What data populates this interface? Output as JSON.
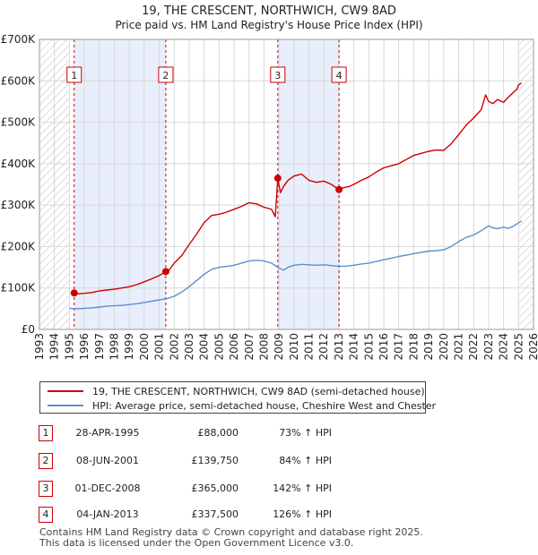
{
  "chart_data": {
    "type": "line",
    "title": "19, THE CRESCENT, NORTHWICH, CW9 8AD",
    "subtitle": "Price paid vs. HM Land Registry's House Price Index (HPI)",
    "xlabel": "",
    "ylabel": "",
    "xlim": [
      1993,
      2026
    ],
    "ylim": [
      0,
      700000
    ],
    "x_ticks": [
      "1993",
      "1994",
      "1995",
      "1996",
      "1997",
      "1998",
      "1999",
      "2000",
      "2001",
      "2002",
      "2003",
      "2004",
      "2005",
      "2006",
      "2007",
      "2008",
      "2009",
      "2010",
      "2011",
      "2012",
      "2013",
      "2014",
      "2015",
      "2016",
      "2017",
      "2018",
      "2019",
      "2020",
      "2021",
      "2022",
      "2023",
      "2024",
      "2025",
      "2026"
    ],
    "y_ticks": [
      {
        "value": 0,
        "label": "£0"
      },
      {
        "value": 100000,
        "label": "£100K"
      },
      {
        "value": 200000,
        "label": "£200K"
      },
      {
        "value": 300000,
        "label": "£300K"
      },
      {
        "value": 400000,
        "label": "£400K"
      },
      {
        "value": 500000,
        "label": "£500K"
      },
      {
        "value": 600000,
        "label": "£600K"
      },
      {
        "value": 700000,
        "label": "£700K"
      }
    ],
    "grid": true,
    "hatched_ranges": [
      [
        1993,
        1995.0
      ],
      [
        2025.0,
        2026
      ]
    ],
    "shaded_ranges": [
      [
        1995.32,
        2001.44
      ],
      [
        2008.92,
        2013.01
      ]
    ],
    "series": [
      {
        "name": "19, THE CRESCENT, NORTHWICH, CW9 8AD (semi-detached house)",
        "color": "#cc0000",
        "x": [
          1995.32,
          1995.6,
          1996.0,
          1996.5,
          1997.0,
          1997.5,
          1998.0,
          1998.5,
          1999.0,
          1999.5,
          2000.0,
          2000.5,
          2001.0,
          2001.44,
          2001.7,
          2002.0,
          2002.5,
          2003.0,
          2003.5,
          2004.0,
          2004.5,
          2005.0,
          2005.5,
          2006.0,
          2006.5,
          2007.0,
          2007.5,
          2008.0,
          2008.5,
          2008.75,
          2008.92,
          2009.1,
          2009.3,
          2009.6,
          2010.0,
          2010.5,
          2011.0,
          2011.5,
          2012.0,
          2012.5,
          2013.01,
          2013.3,
          2013.7,
          2014.0,
          2014.5,
          2015.0,
          2015.5,
          2016.0,
          2016.5,
          2017.0,
          2017.5,
          2018.0,
          2018.5,
          2019.0,
          2019.5,
          2020.0,
          2020.5,
          2021.0,
          2021.5,
          2022.0,
          2022.5,
          2022.8,
          2023.0,
          2023.3,
          2023.6,
          2024.0,
          2024.3,
          2024.6,
          2024.9,
          2025.0,
          2025.2
        ],
        "values": [
          88000,
          86000,
          87000,
          89000,
          93000,
          95000,
          97000,
          100000,
          103000,
          108000,
          115000,
          122000,
          130000,
          139750,
          145000,
          160000,
          178000,
          205000,
          230000,
          258000,
          275000,
          278000,
          283000,
          290000,
          297000,
          306000,
          303000,
          295000,
          290000,
          272000,
          365000,
          330000,
          345000,
          360000,
          370000,
          375000,
          360000,
          355000,
          358000,
          350000,
          337500,
          342000,
          345000,
          350000,
          360000,
          368000,
          380000,
          390000,
          395000,
          400000,
          410000,
          420000,
          425000,
          430000,
          433000,
          432000,
          448000,
          470000,
          493000,
          510000,
          530000,
          566000,
          550000,
          545000,
          555000,
          548000,
          560000,
          570000,
          580000,
          590000,
          595000
        ]
      },
      {
        "name": "HPI: Average price, semi-detached house, Cheshire West and Chester",
        "color": "#5b8fcc",
        "x": [
          1995.0,
          1995.5,
          1996.0,
          1996.5,
          1997.0,
          1997.5,
          1998.0,
          1998.5,
          1999.0,
          1999.5,
          2000.0,
          2000.5,
          2001.0,
          2001.5,
          2002.0,
          2002.5,
          2003.0,
          2003.5,
          2004.0,
          2004.5,
          2005.0,
          2005.5,
          2006.0,
          2006.5,
          2007.0,
          2007.5,
          2008.0,
          2008.5,
          2009.0,
          2009.3,
          2009.6,
          2010.0,
          2010.5,
          2011.0,
          2011.5,
          2012.0,
          2012.5,
          2013.0,
          2013.5,
          2014.0,
          2014.5,
          2015.0,
          2015.5,
          2016.0,
          2016.5,
          2017.0,
          2017.5,
          2018.0,
          2018.5,
          2019.0,
          2019.5,
          2020.0,
          2020.5,
          2021.0,
          2021.5,
          2022.0,
          2022.5,
          2023.0,
          2023.3,
          2023.6,
          2024.0,
          2024.3,
          2024.6,
          2024.9,
          2025.2
        ],
        "values": [
          51000,
          50000,
          51000,
          52000,
          54000,
          56000,
          57000,
          58000,
          60000,
          62000,
          65000,
          68000,
          71000,
          74000,
          80000,
          90000,
          103000,
          118000,
          133000,
          145000,
          150000,
          152000,
          155000,
          160000,
          165000,
          167000,
          165000,
          160000,
          148000,
          143000,
          150000,
          155000,
          157000,
          156000,
          155000,
          156000,
          154000,
          152000,
          153000,
          155000,
          158000,
          160000,
          164000,
          168000,
          172000,
          176000,
          179000,
          183000,
          186000,
          189000,
          190000,
          192000,
          200000,
          212000,
          222000,
          228000,
          238000,
          250000,
          245000,
          243000,
          247000,
          244000,
          248000,
          255000,
          262000
        ]
      }
    ],
    "sales": [
      {
        "num": "1",
        "x": 1995.32,
        "date": "28-APR-1995",
        "price": "£88,000",
        "price_value": 88000,
        "hpi": "73% ↑ HPI"
      },
      {
        "num": "2",
        "x": 2001.44,
        "date": "08-JUN-2001",
        "price": "£139,750",
        "price_value": 139750,
        "hpi": "84% ↑ HPI"
      },
      {
        "num": "3",
        "x": 2008.92,
        "date": "01-DEC-2008",
        "price": "£365,000",
        "price_value": 365000,
        "hpi": "142% ↑ HPI"
      },
      {
        "num": "4",
        "x": 2013.01,
        "date": "04-JAN-2013",
        "price": "£337,500",
        "price_value": 337500,
        "hpi": "126% ↑ HPI"
      }
    ],
    "legend": [
      {
        "label": "19, THE CRESCENT, NORTHWICH, CW9 8AD (semi-detached house)",
        "color": "#cc0000"
      },
      {
        "label": "HPI: Average price, semi-detached house, Cheshire West and Chester",
        "color": "#5b8fcc"
      }
    ]
  },
  "footer": {
    "line1": "Contains HM Land Registry data © Crown copyright and database right 2025.",
    "line2": "This data is licensed under the Open Government Licence v3.0."
  }
}
